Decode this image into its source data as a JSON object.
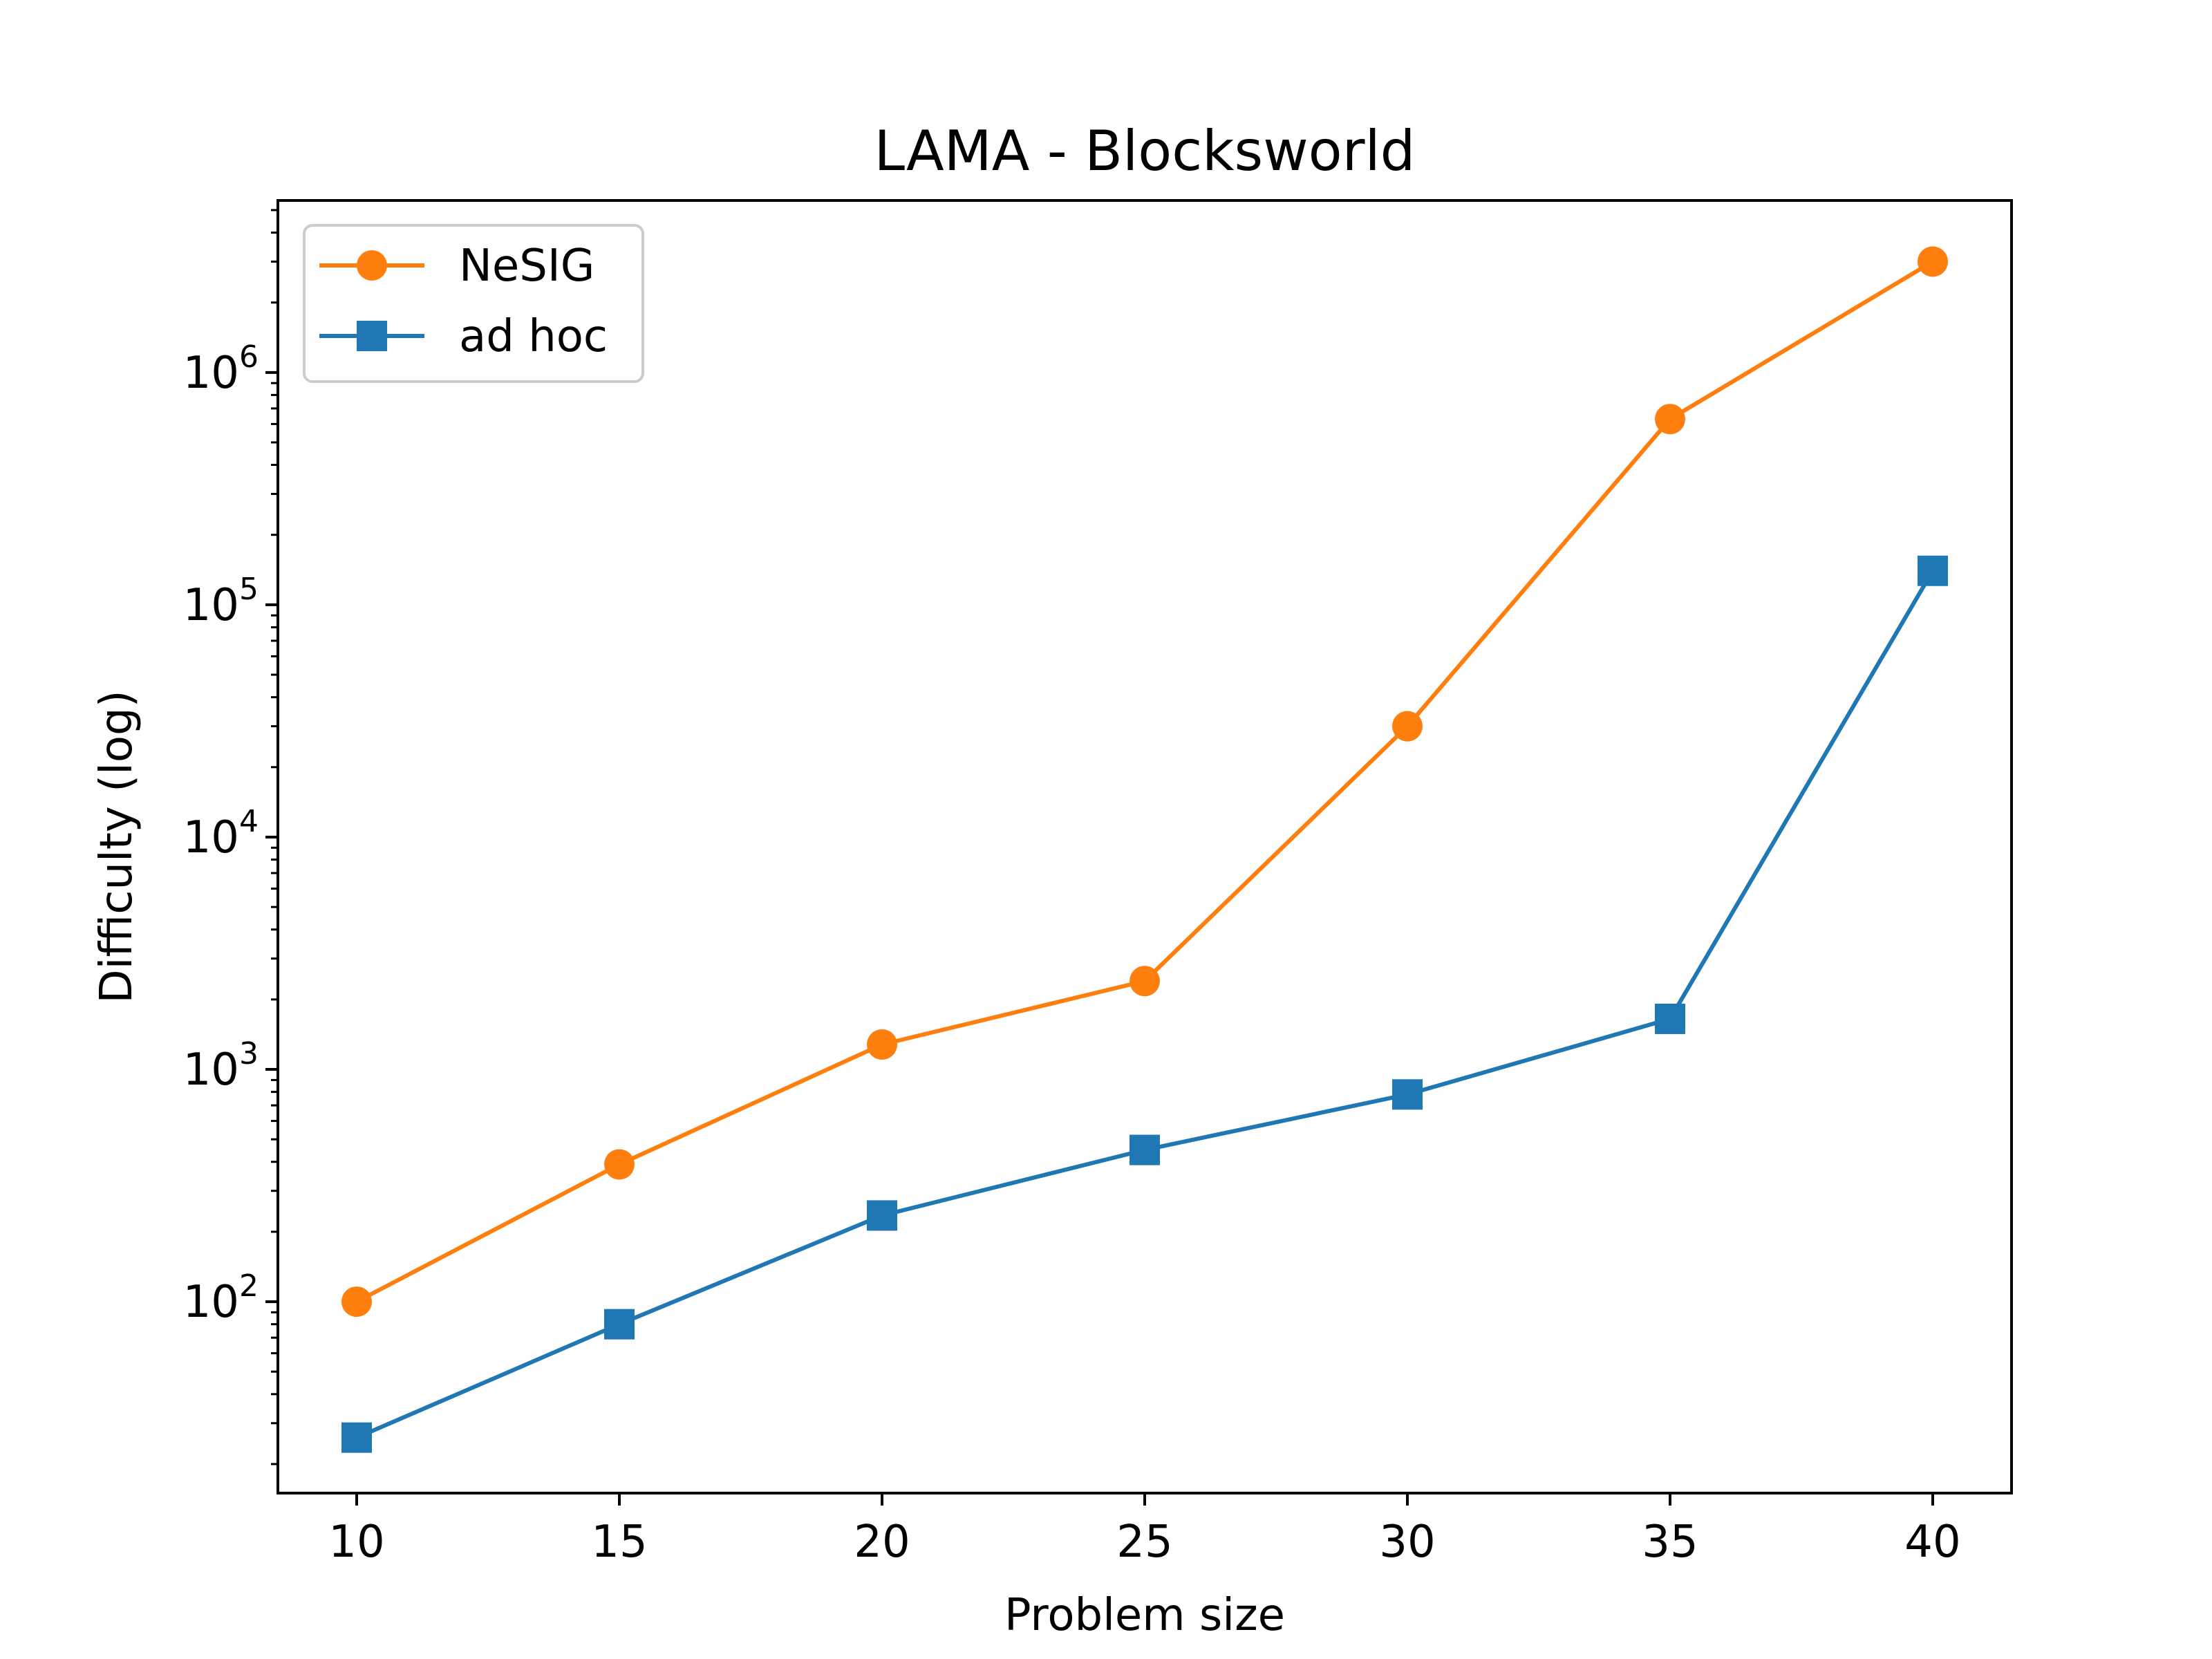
{
  "chart_data": {
    "type": "line",
    "title": "LAMA - Blocksworld",
    "xlabel": "Problem size",
    "ylabel": "Difficulty (log)",
    "yscale": "log",
    "x": [
      10,
      15,
      20,
      25,
      30,
      35,
      40
    ],
    "xticks": [
      "10",
      "15",
      "20",
      "25",
      "30",
      "35",
      "40"
    ],
    "xlim": [
      8.5,
      41.5
    ],
    "ylim": [
      15,
      5500000
    ],
    "yticks": [
      {
        "base": "10",
        "exp": "2",
        "value": 100
      },
      {
        "base": "10",
        "exp": "3",
        "value": 1000
      },
      {
        "base": "10",
        "exp": "4",
        "value": 10000
      },
      {
        "base": "10",
        "exp": "5",
        "value": 100000
      },
      {
        "base": "10",
        "exp": "6",
        "value": 1000000
      }
    ],
    "grid": false,
    "legend_position": "top-left",
    "series": [
      {
        "name": "NeSIG",
        "color": "#ff7f0e",
        "marker": "circle",
        "values": [
          100,
          390,
          1280,
          2400,
          30000,
          630000,
          3000000
        ]
      },
      {
        "name": "ad hoc",
        "color": "#1f77b4",
        "marker": "square",
        "values": [
          26,
          80,
          235,
          450,
          780,
          1650,
          140000
        ]
      }
    ]
  }
}
